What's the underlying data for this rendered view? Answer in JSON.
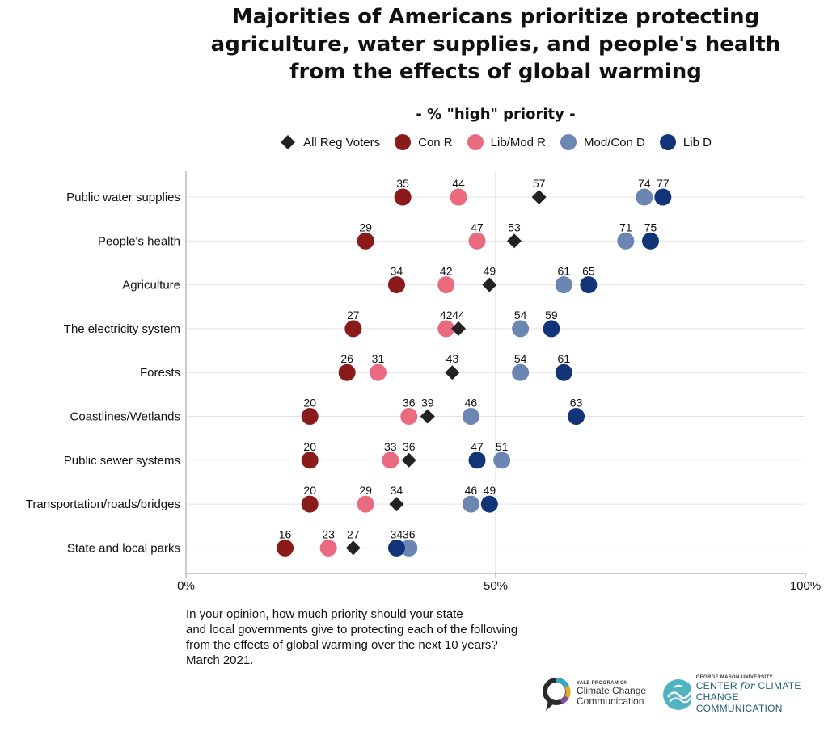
{
  "title": {
    "lines": [
      "Majorities of Americans prioritize protecting",
      "agriculture, water supplies, and people's health",
      "from the effects of global warming"
    ]
  },
  "colors": {
    "all": "#222222",
    "conR": "#8b1a1a",
    "libModR": "#ea6a80",
    "modConD": "#6b86b3",
    "libD": "#12357a",
    "grid": "#e4e4e4",
    "axis": "#999999"
  },
  "chart_data": {
    "type": "dot",
    "title": "Majorities of Americans prioritize protecting agriculture, water supplies, and people's health from the effects of global warming",
    "subtitle": "- % \"high\" priority -",
    "xlim": [
      0,
      100
    ],
    "x_ticks": [
      {
        "value": 0,
        "label": "0%"
      },
      {
        "value": 50,
        "label": "50%"
      },
      {
        "value": 100,
        "label": "100%"
      }
    ],
    "legend": "top-center",
    "series": [
      {
        "key": "all",
        "name": "All Reg Voters",
        "marker": "diamond",
        "color": "#222222"
      },
      {
        "key": "conR",
        "name": "Con R",
        "marker": "circle",
        "color": "#8b1a1a"
      },
      {
        "key": "libModR",
        "name": "Lib/Mod R",
        "marker": "circle",
        "color": "#ea6a80"
      },
      {
        "key": "modConD",
        "name": "Mod/Con D",
        "marker": "circle",
        "color": "#6b86b3"
      },
      {
        "key": "libD",
        "name": "Lib D",
        "marker": "circle",
        "color": "#12357a"
      }
    ],
    "categories": [
      {
        "label": "Public water supplies",
        "all": 57,
        "conR": 35,
        "libModR": 44,
        "modConD": 74,
        "libD": 77
      },
      {
        "label": "People's health",
        "all": 53,
        "conR": 29,
        "libModR": 47,
        "modConD": 71,
        "libD": 75
      },
      {
        "label": "Agriculture",
        "all": 49,
        "conR": 34,
        "libModR": 42,
        "modConD": 61,
        "libD": 65
      },
      {
        "label": "The electricity system",
        "all": 44,
        "conR": 27,
        "libModR": 42,
        "modConD": 54,
        "libD": 59
      },
      {
        "label": "Forests",
        "all": 43,
        "conR": 26,
        "libModR": 31,
        "modConD": 54,
        "libD": 61
      },
      {
        "label": "Coastlines/Wetlands",
        "all": 39,
        "conR": 20,
        "libModR": 36,
        "modConD": 46,
        "libD": 63
      },
      {
        "label": "Public sewer systems",
        "all": 36,
        "conR": 20,
        "libModR": 33,
        "modConD": 51,
        "libD": 47
      },
      {
        "label": "Transportation/roads/bridges",
        "all": 34,
        "conR": 20,
        "libModR": 29,
        "modConD": 46,
        "libD": 49
      },
      {
        "label": "State and local parks",
        "all": 27,
        "conR": 16,
        "libModR": 23,
        "modConD": 36,
        "libD": 34
      }
    ]
  },
  "question": {
    "lines": [
      "In your opinion, how much priority should your state",
      "and local governments give to protecting each of the following",
      "from the effects of global warming over the next 10 years?",
      "March 2021."
    ]
  },
  "logos": {
    "yale": {
      "small": "YALE PROGRAM ON",
      "line1": "Climate Change",
      "line2": "Communication"
    },
    "gmu": {
      "small": "GEORGE MASON UNIVERSITY",
      "line1_a": "CENTER ",
      "line1_b": "for",
      "line1_c": " CLIMATE CHANGE",
      "line2": "COMMUNICATION"
    }
  }
}
